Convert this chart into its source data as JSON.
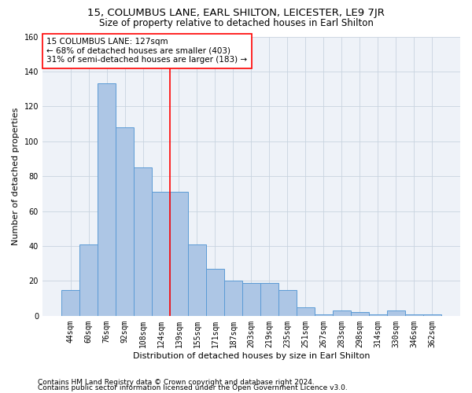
{
  "title": "15, COLUMBUS LANE, EARL SHILTON, LEICESTER, LE9 7JR",
  "subtitle": "Size of property relative to detached houses in Earl Shilton",
  "xlabel": "Distribution of detached houses by size in Earl Shilton",
  "ylabel": "Number of detached properties",
  "footnote1": "Contains HM Land Registry data © Crown copyright and database right 2024.",
  "footnote2": "Contains public sector information licensed under the Open Government Licence v3.0.",
  "bar_labels": [
    "44sqm",
    "60sqm",
    "76sqm",
    "92sqm",
    "108sqm",
    "124sqm",
    "139sqm",
    "155sqm",
    "171sqm",
    "187sqm",
    "203sqm",
    "219sqm",
    "235sqm",
    "251sqm",
    "267sqm",
    "283sqm",
    "298sqm",
    "314sqm",
    "330sqm",
    "346sqm",
    "362sqm"
  ],
  "bar_values": [
    15,
    41,
    133,
    108,
    85,
    71,
    71,
    41,
    27,
    20,
    19,
    19,
    15,
    5,
    1,
    3,
    2,
    1,
    3,
    1,
    1
  ],
  "bar_color": "#adc6e5",
  "bar_edge_color": "#5b9bd5",
  "annotation_text": "15 COLUMBUS LANE: 127sqm\n← 68% of detached houses are smaller (403)\n31% of semi-detached houses are larger (183) →",
  "annotation_box_color": "white",
  "annotation_box_edge": "red",
  "vline_color": "red",
  "vline_x": 5.5,
  "ylim": [
    0,
    160
  ],
  "yticks": [
    0,
    20,
    40,
    60,
    80,
    100,
    120,
    140,
    160
  ],
  "grid_color": "#c8d4e0",
  "bg_color": "#eef2f8",
  "title_fontsize": 9.5,
  "subtitle_fontsize": 8.5,
  "axis_label_fontsize": 8,
  "tick_fontsize": 7,
  "footnote_fontsize": 6.5,
  "annotation_fontsize": 7.5
}
